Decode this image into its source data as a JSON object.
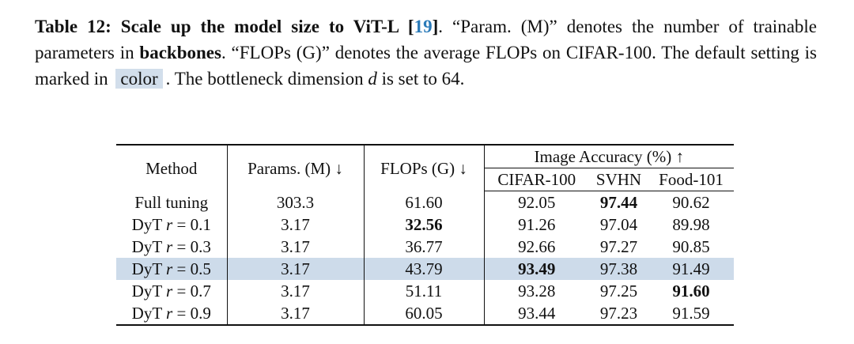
{
  "caption": [
    "Table 12: Scale up the model size to ViT-L [",
    "19",
    "]",
    ". “Param. (M)” denotes the number of trainable parameters in ",
    "backbones",
    ". “FLOPs (G)” denotes the average FLOPs on CIFAR-100. The default setting is marked in ",
    "color",
    ". The bottleneck dimension ",
    "d",
    " is set to 64."
  ],
  "table": {
    "header": {
      "method": "Method",
      "params": "Params. (M) ↓",
      "flops": "FLOPs (G) ↓",
      "group": "Image Accuracy (%) ↑",
      "datasets": [
        "CIFAR-100",
        "SVHN",
        "Food-101"
      ]
    },
    "rows": [
      [
        [
          "Full tuning"
        ],
        "303.3",
        "61.60",
        "92.05",
        "97.44",
        "90.62"
      ],
      [
        [
          "DyT",
          "r",
          "= 0.1"
        ],
        "3.17",
        "32.56",
        "91.26",
        "97.04",
        "89.98"
      ],
      [
        [
          "DyT",
          "r",
          "= 0.3"
        ],
        "3.17",
        "36.77",
        "92.66",
        "97.27",
        "90.85"
      ],
      [
        [
          "DyT",
          "r",
          "= 0.5"
        ],
        "3.17",
        "43.79",
        "93.49",
        "97.38",
        "91.49"
      ],
      [
        [
          "DyT",
          "r",
          "= 0.7"
        ],
        "3.17",
        "51.11",
        "93.28",
        "97.25",
        "91.60"
      ],
      [
        [
          "DyT",
          "r",
          "= 0.9"
        ],
        "3.17",
        "60.05",
        "93.44",
        "97.23",
        "91.59"
      ]
    ]
  }
}
